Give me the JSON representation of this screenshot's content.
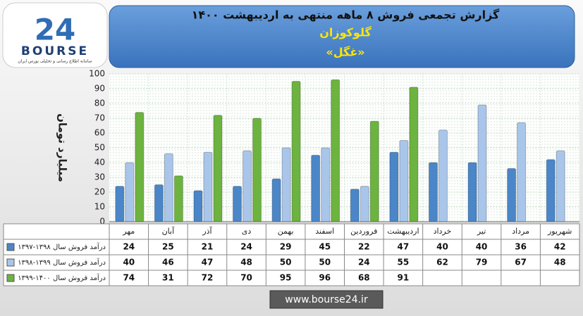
{
  "logo": {
    "mark": "24",
    "name": "BOURSE",
    "tagline": "سامانه اطلاع رسانی و تحلیلی بورس ایران"
  },
  "chart_data": {
    "type": "bar",
    "title": "گزارش تجمعی فروش ۸ ماهه منتهی به اردیبهشت ۱۴۰۰",
    "subtitle": "گلوکوزان",
    "symbol": "«غگل»",
    "y_label": "میلیارد تومان",
    "categories": [
      "مهر",
      "آبان",
      "آذر",
      "دی",
      "بهمن",
      "اسفند",
      "فروردین",
      "اردیبهشت",
      "خرداد",
      "تیر",
      "مرداد",
      "شهریور"
    ],
    "series": [
      {
        "name": "درآمد فروش سال ۱۳۹۸-۱۳۹۷",
        "color": "#4a86c8",
        "values": [
          24,
          25,
          21,
          24,
          29,
          45,
          22,
          47,
          40,
          40,
          36,
          42
        ]
      },
      {
        "name": "درآمد فروش سال ۱۳۹۹-۱۳۹۸",
        "color": "#a9c6ea",
        "values": [
          40,
          46,
          47,
          48,
          50,
          50,
          24,
          55,
          62,
          79,
          67,
          48
        ]
      },
      {
        "name": "درآمد فروش سال ۱۴۰۰-۱۳۹۹",
        "color": "#6cb33f",
        "values": [
          74,
          31,
          72,
          70,
          95,
          96,
          68,
          91,
          null,
          null,
          null,
          null
        ]
      }
    ],
    "ylim": [
      0,
      100
    ],
    "yticks": [
      0,
      10,
      20,
      30,
      40,
      50,
      60,
      70,
      80,
      90,
      100
    ],
    "grid": true,
    "footer": "www.bourse24.ir"
  }
}
